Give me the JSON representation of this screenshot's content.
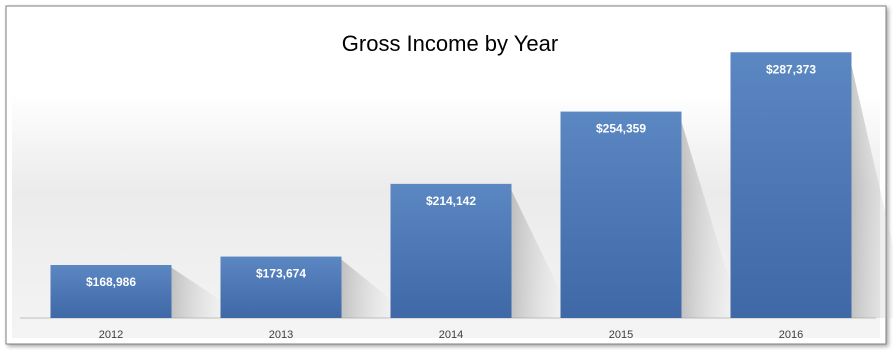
{
  "chart_data": {
    "type": "bar",
    "title": "Gross Income by Year",
    "xlabel": "",
    "ylabel": "",
    "categories": [
      "2012",
      "2013",
      "2014",
      "2015",
      "2016"
    ],
    "values": [
      168986,
      173674,
      214142,
      254359,
      287373
    ],
    "value_labels": [
      "$168,986",
      "$173,674",
      "$214,142",
      "$254,359",
      "$287,373"
    ],
    "ylim": [
      130000,
      300000
    ],
    "grid": false,
    "legend": "none",
    "colors": {
      "bar_top": "#5b87c3",
      "bar_bottom": "#3f68a6",
      "frame": "#7f7f7f",
      "background_top": "#ffffff",
      "background_mid": "#e9e9e9"
    }
  }
}
